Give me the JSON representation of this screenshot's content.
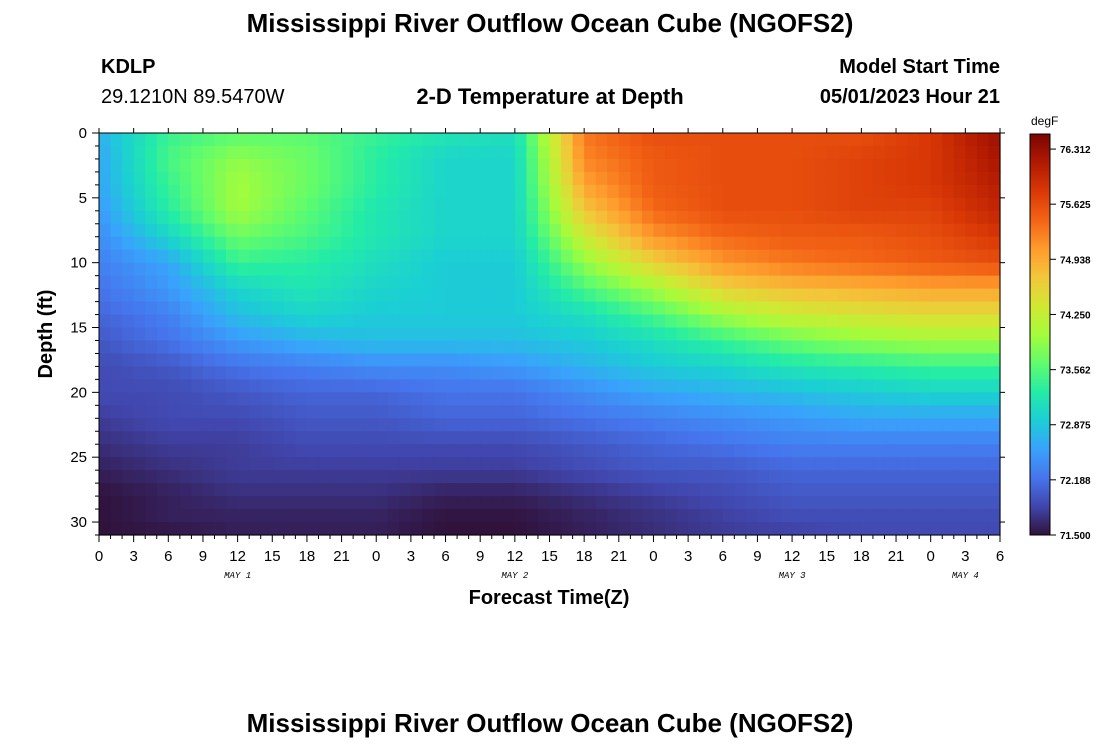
{
  "header": {
    "title": "Mississippi River Outflow Ocean Cube (NGOFS2)",
    "station": "KDLP",
    "coordinates": "29.1210N  89.5470W",
    "subtitle": "2-D Temperature at Depth",
    "model_start_label": "Model Start Time",
    "model_start_value": "05/01/2023 Hour 21"
  },
  "footer": {
    "title": "Mississippi River Outflow Ocean Cube (NGOFS2)"
  },
  "chart_data": {
    "type": "heatmap",
    "xlabel": "Forecast Time(Z)",
    "ylabel": "Depth (ft)",
    "x_unit": "forecast hour",
    "xlim": [
      0,
      78
    ],
    "ylim": [
      31,
      0
    ],
    "x_tick_values": [
      0,
      3,
      6,
      9,
      12,
      15,
      18,
      21,
      24,
      27,
      30,
      33,
      36,
      39,
      42,
      45,
      48,
      51,
      54,
      57,
      60,
      63,
      66,
      69,
      72,
      75,
      78
    ],
    "x_tick_labels": [
      "0",
      "3",
      "6",
      "9",
      "12",
      "15",
      "18",
      "21",
      "0",
      "3",
      "6",
      "9",
      "12",
      "15",
      "18",
      "21",
      "0",
      "3",
      "6",
      "9",
      "12",
      "15",
      "18",
      "21",
      "0",
      "3",
      "6"
    ],
    "day_labels": [
      {
        "text": "MAY 1",
        "hour": 12
      },
      {
        "text": "MAY 2",
        "hour": 36
      },
      {
        "text": "MAY 3",
        "hour": 60
      },
      {
        "text": "MAY 4",
        "hour": 75
      }
    ],
    "y_ticks": [
      0,
      5,
      10,
      15,
      20,
      25,
      30
    ],
    "colorbar": {
      "unit": "degF",
      "min": 71.5,
      "max": 76.5,
      "tick_labels": [
        "71.500",
        "72.188",
        "72.875",
        "73.562",
        "74.250",
        "74.938",
        "75.625",
        "76.312"
      ],
      "colormap": [
        "#30123b",
        "#4145ab",
        "#4675ed",
        "#39a2fc",
        "#1bcfd4",
        "#24eca6",
        "#61fc6c",
        "#a4fc3b",
        "#d1e834",
        "#f3c63a",
        "#fe9b2d",
        "#f36315",
        "#d93806",
        "#b11901",
        "#7a0402"
      ]
    },
    "grid": false,
    "depths": [
      0,
      2,
      4,
      6,
      8,
      10,
      12,
      14,
      16,
      18,
      20,
      22,
      24,
      26,
      28,
      30,
      31
    ],
    "times": [
      0,
      6,
      12,
      18,
      24,
      30,
      36,
      42,
      48,
      54,
      60,
      66,
      72,
      78
    ],
    "values": [
      [
        72.7,
        73.4,
        73.6,
        73.6,
        73.4,
        73.2,
        73.1,
        75.3,
        75.6,
        75.6,
        75.6,
        75.6,
        75.8,
        76.3
      ],
      [
        72.6,
        73.5,
        73.9,
        73.7,
        73.3,
        73.0,
        73.0,
        75.2,
        75.5,
        75.6,
        75.6,
        75.7,
        75.8,
        76.2
      ],
      [
        72.6,
        73.4,
        74.0,
        73.7,
        73.3,
        73.0,
        73.0,
        75.0,
        75.5,
        75.6,
        75.6,
        75.7,
        75.8,
        76.1
      ],
      [
        72.5,
        73.3,
        74.0,
        73.6,
        73.2,
        73.0,
        73.0,
        74.7,
        75.4,
        75.6,
        75.6,
        75.7,
        75.7,
        76.0
      ],
      [
        72.4,
        73.0,
        73.7,
        73.5,
        73.2,
        73.0,
        73.0,
        74.3,
        75.1,
        75.4,
        75.5,
        75.5,
        75.6,
        75.8
      ],
      [
        72.3,
        72.6,
        73.4,
        73.3,
        73.1,
        72.9,
        72.9,
        73.9,
        74.6,
        75.1,
        75.3,
        75.4,
        75.5,
        75.6
      ],
      [
        72.2,
        72.5,
        73.0,
        73.2,
        73.0,
        72.9,
        72.9,
        73.5,
        74.0,
        74.6,
        74.8,
        74.9,
        75.0,
        75.0
      ],
      [
        72.1,
        72.3,
        72.8,
        73.0,
        72.9,
        72.9,
        72.9,
        73.1,
        73.5,
        74.0,
        74.3,
        74.4,
        74.5,
        74.5
      ],
      [
        72.0,
        72.2,
        72.5,
        72.7,
        72.8,
        72.8,
        72.8,
        72.9,
        73.1,
        73.4,
        73.7,
        73.9,
        74.0,
        74.0
      ],
      [
        71.9,
        72.0,
        72.2,
        72.3,
        72.4,
        72.4,
        72.5,
        72.7,
        72.9,
        73.0,
        73.2,
        73.3,
        73.4,
        73.4
      ],
      [
        71.9,
        71.9,
        72.0,
        72.1,
        72.1,
        72.2,
        72.2,
        72.4,
        72.6,
        72.7,
        72.8,
        72.9,
        73.0,
        73.0
      ],
      [
        71.8,
        71.9,
        71.9,
        72.0,
        72.0,
        72.1,
        72.1,
        72.2,
        72.3,
        72.4,
        72.5,
        72.6,
        72.6,
        72.6
      ],
      [
        71.7,
        71.8,
        71.8,
        71.9,
        71.9,
        71.9,
        71.9,
        72.0,
        72.1,
        72.2,
        72.3,
        72.3,
        72.3,
        72.3
      ],
      [
        71.6,
        71.7,
        71.8,
        71.8,
        71.8,
        71.8,
        71.8,
        71.9,
        72.0,
        72.0,
        72.1,
        72.1,
        72.1,
        72.1
      ],
      [
        71.5,
        71.6,
        71.7,
        71.7,
        71.7,
        71.6,
        71.6,
        71.7,
        71.8,
        71.9,
        72.0,
        72.0,
        72.0,
        72.0
      ],
      [
        71.5,
        71.6,
        71.6,
        71.6,
        71.6,
        71.5,
        71.5,
        71.6,
        71.7,
        71.8,
        71.9,
        71.9,
        71.9,
        71.9
      ],
      [
        71.5,
        71.5,
        71.6,
        71.6,
        71.6,
        71.5,
        71.5,
        71.6,
        71.7,
        71.8,
        71.8,
        71.9,
        71.9,
        71.9
      ]
    ]
  }
}
